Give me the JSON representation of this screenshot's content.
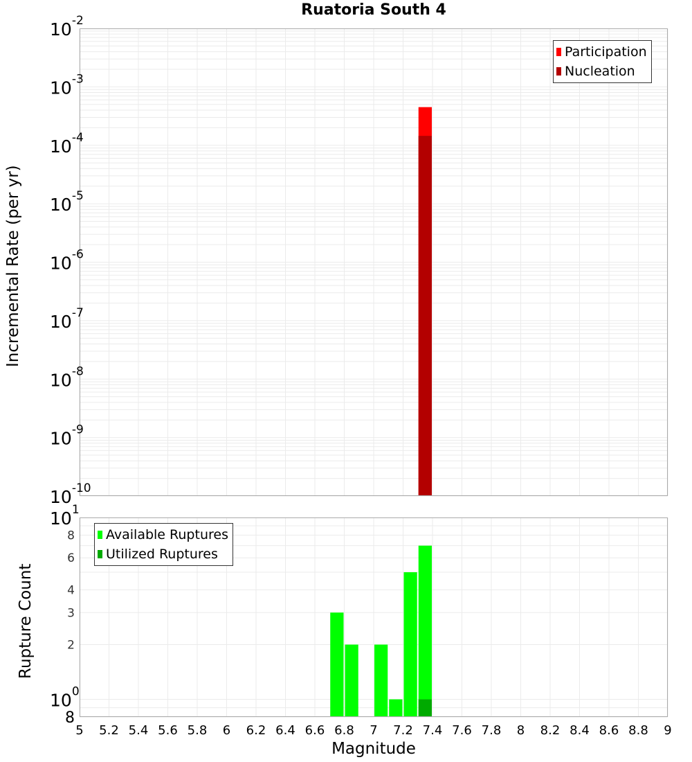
{
  "title": "Ruatoria South 4",
  "top_plot": {
    "ylabel": "Incremental Rate (per yr)",
    "y_ticks": [
      {
        "base": "10",
        "exp": "-2"
      },
      {
        "base": "10",
        "exp": "-3"
      },
      {
        "base": "10",
        "exp": "-4"
      },
      {
        "base": "10",
        "exp": "-5"
      },
      {
        "base": "10",
        "exp": "-6"
      },
      {
        "base": "10",
        "exp": "-7"
      },
      {
        "base": "10",
        "exp": "-8"
      },
      {
        "base": "10",
        "exp": "-9"
      },
      {
        "base": "10",
        "exp": "-10"
      }
    ],
    "legend": [
      {
        "label": "Participation",
        "color": "#ff0000"
      },
      {
        "label": "Nucleation",
        "color": "#b30000"
      }
    ]
  },
  "bottom_plot": {
    "ylabel": "Rupture Count",
    "y_ticks_major": [
      {
        "base": "10",
        "exp": "1"
      },
      {
        "base": "10",
        "exp": "0"
      }
    ],
    "y_ticks_minor": [
      "8",
      "6",
      "4",
      "3",
      "2",
      "8"
    ],
    "legend": [
      {
        "label": "Available Ruptures",
        "color": "#00ff00"
      },
      {
        "label": "Utilized Ruptures",
        "color": "#00aa00"
      }
    ]
  },
  "x_axis": {
    "label": "Magnitude",
    "ticks": [
      "5",
      "5.2",
      "5.4",
      "5.6",
      "5.8",
      "6",
      "6.2",
      "6.4",
      "6.6",
      "6.8",
      "7",
      "7.2",
      "7.4",
      "7.6",
      "7.8",
      "8",
      "8.2",
      "8.4",
      "8.6",
      "8.8",
      "9"
    ]
  },
  "chart_data": [
    {
      "type": "bar",
      "title": "Ruatoria South 4",
      "xlabel": "Magnitude",
      "ylabel": "Incremental Rate (per yr)",
      "yscale": "log",
      "xlim": [
        5,
        9
      ],
      "ylim": [
        1e-10,
        0.01
      ],
      "grid": true,
      "legend_position": "upper right",
      "bin_width": 0.1,
      "series": [
        {
          "name": "Participation",
          "color": "#ff0000",
          "x": [
            7.35
          ],
          "values": [
            0.00045
          ]
        },
        {
          "name": "Nucleation",
          "color": "#b30000",
          "x": [
            7.35
          ],
          "values": [
            0.000145
          ]
        }
      ]
    },
    {
      "type": "bar",
      "title": "",
      "xlabel": "Magnitude",
      "ylabel": "Rupture Count",
      "yscale": "log",
      "xlim": [
        5,
        9
      ],
      "ylim": [
        0.8,
        10
      ],
      "grid": true,
      "legend_position": "upper left",
      "bin_width": 0.1,
      "series": [
        {
          "name": "Available Ruptures",
          "color": "#00ff00",
          "x": [
            6.75,
            6.85,
            7.05,
            7.15,
            7.25,
            7.35
          ],
          "values": [
            3,
            2,
            2,
            1,
            5,
            7
          ]
        },
        {
          "name": "Utilized Ruptures",
          "color": "#00aa00",
          "x": [
            7.35
          ],
          "values": [
            1
          ]
        }
      ]
    }
  ]
}
